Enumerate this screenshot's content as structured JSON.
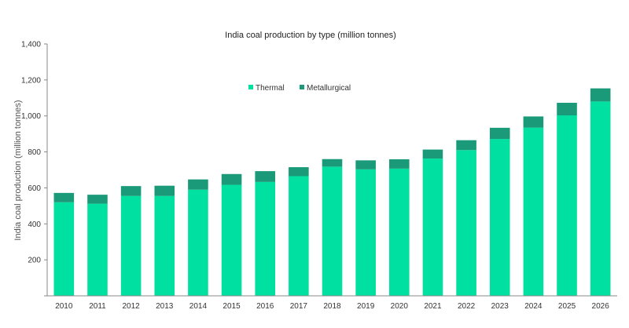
{
  "chart_data": {
    "type": "bar",
    "stacked": true,
    "title": "India coal production by type (million tonnes)",
    "xlabel": "",
    "ylabel": "India coal production (million tonnes)",
    "ylim": [
      0,
      1400
    ],
    "yticks": [
      0,
      200,
      400,
      600,
      800,
      1000,
      1200,
      1400
    ],
    "ytick_labels": [
      "",
      "200",
      "400",
      "600",
      "800",
      "1,000",
      "1,200",
      "1,400"
    ],
    "grid": false,
    "legend_position": "top-center",
    "categories": [
      "2010",
      "2011",
      "2012",
      "2013",
      "2014",
      "2015",
      "2016",
      "2017",
      "2018",
      "2019",
      "2020",
      "2021",
      "2022",
      "2023",
      "2024",
      "2025",
      "2026"
    ],
    "series": [
      {
        "name": "Thermal",
        "color": "#00e0a0",
        "values": [
          520,
          512,
          555,
          555,
          590,
          617,
          633,
          665,
          718,
          703,
          707,
          763,
          810,
          872,
          935,
          1003,
          1080
        ]
      },
      {
        "name": "Metallurgical",
        "color": "#1a9a78",
        "values": [
          52,
          50,
          55,
          57,
          57,
          60,
          60,
          50,
          42,
          50,
          52,
          50,
          55,
          62,
          62,
          70,
          73
        ]
      }
    ]
  }
}
